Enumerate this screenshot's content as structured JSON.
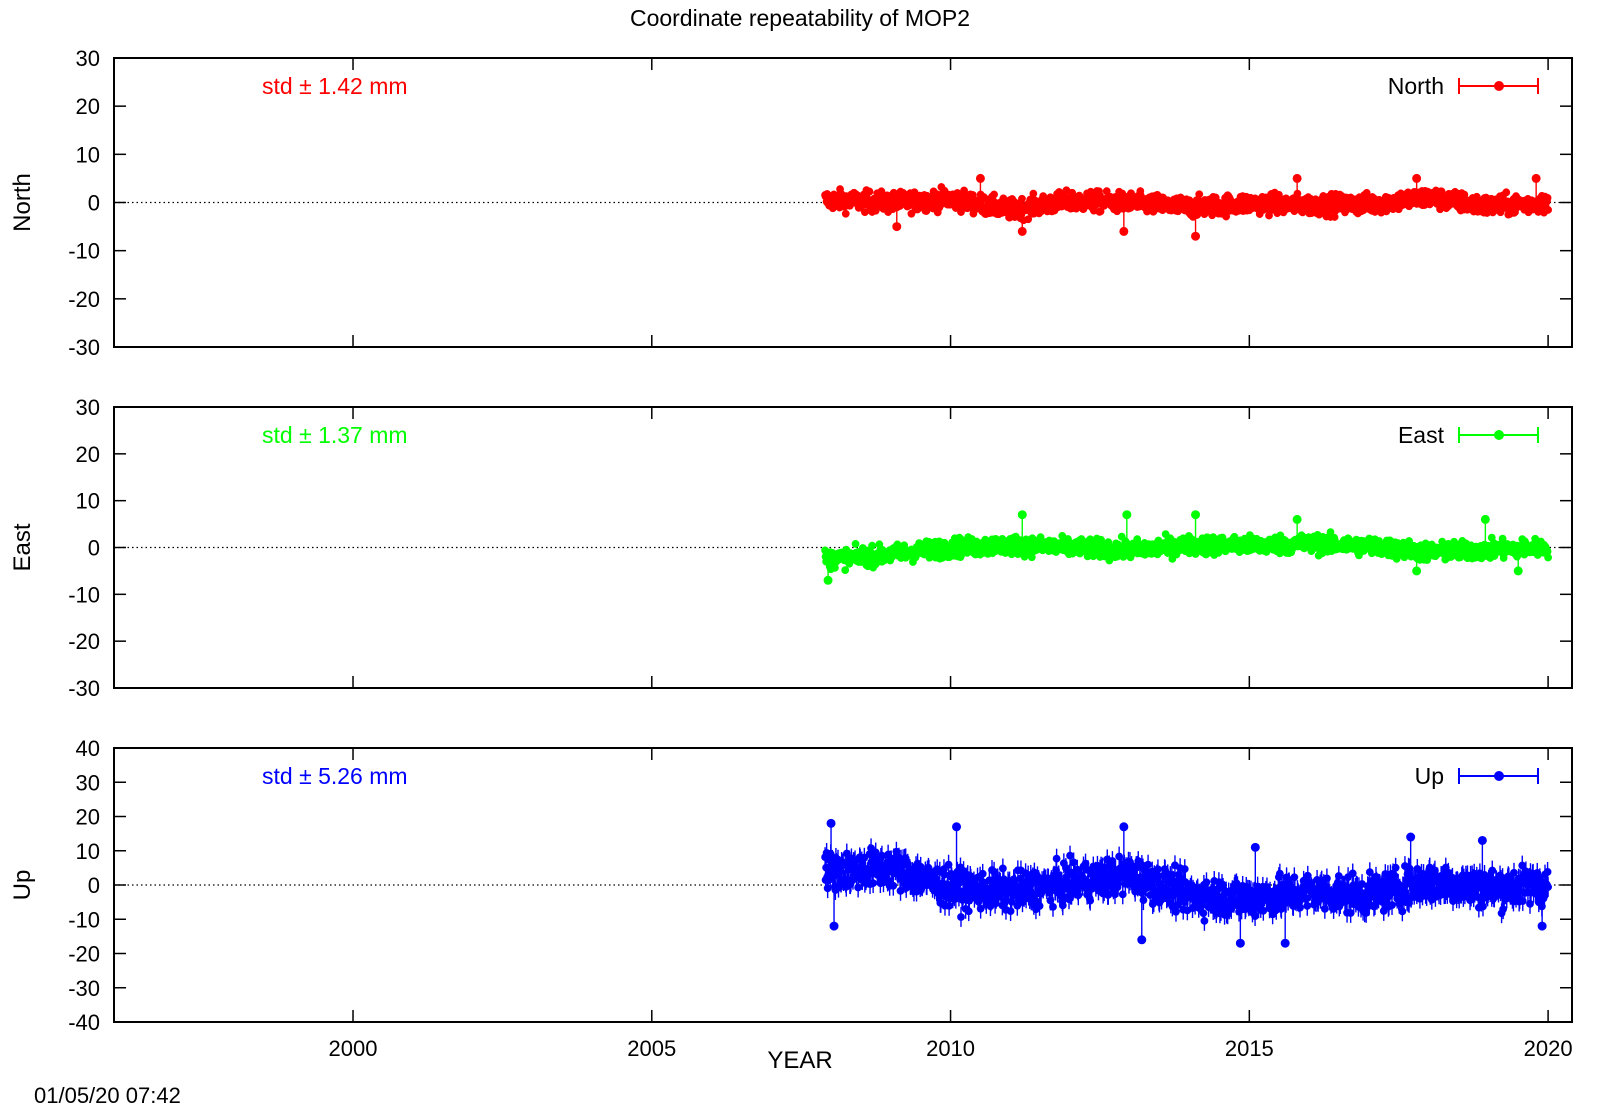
{
  "chart_data": {
    "type": "scatter",
    "title": "Coordinate repeatability of MOP2",
    "xlabel": "YEAR",
    "xlim": [
      1996,
      2020.4
    ],
    "x_ticks": [
      "2000",
      "2005",
      "2010",
      "2015",
      "2020"
    ],
    "x_start": 2007.9,
    "x_end": 2020.0,
    "timestamp": "01/05/20 07:42",
    "grid": false,
    "legend_position": "top-right",
    "reference_line": 0,
    "panels": [
      {
        "key": "north",
        "ylabel": "North",
        "legend": "North",
        "std_label": "std ± 1.42 mm",
        "color": "#ff0000",
        "ylim": [
          -30,
          30
        ],
        "y_ticks": [
          "30",
          "20",
          "10",
          "0",
          "-10",
          "-20",
          "-30"
        ],
        "std": 1.42,
        "trend_years": [
          2008,
          2009,
          2010,
          2011,
          2012,
          2013,
          2014,
          2015,
          2016,
          2017,
          2018,
          2019,
          2020
        ],
        "trend_values": [
          0.5,
          0.0,
          0.8,
          -1.5,
          0.3,
          0.0,
          -1.0,
          -0.2,
          -0.5,
          -0.3,
          1.0,
          -0.8,
          0.0
        ],
        "spread": 1.9,
        "outliers": [
          [
            2009.1,
            -5
          ],
          [
            2010.5,
            5
          ],
          [
            2011.2,
            -6
          ],
          [
            2012.9,
            -6
          ],
          [
            2014.1,
            -7
          ],
          [
            2015.8,
            5
          ],
          [
            2017.8,
            5
          ],
          [
            2019.8,
            5
          ]
        ]
      },
      {
        "key": "east",
        "ylabel": "East",
        "legend": "East",
        "std_label": "std ± 1.37 mm",
        "color": "#00ff00",
        "ylim": [
          -30,
          30
        ],
        "y_ticks": [
          "30",
          "20",
          "10",
          "0",
          "-10",
          "-20",
          "-30"
        ],
        "std": 1.37,
        "trend_years": [
          2008,
          2009,
          2010,
          2011,
          2012,
          2013,
          2014,
          2015,
          2016,
          2017,
          2018,
          2019,
          2020
        ],
        "trend_values": [
          -2.5,
          -1.5,
          0.0,
          0.5,
          0.0,
          -0.5,
          0.5,
          0.5,
          0.8,
          0.3,
          -1.0,
          -0.5,
          0.0
        ],
        "spread": 1.8,
        "outliers": [
          [
            2007.95,
            -7
          ],
          [
            2011.2,
            7
          ],
          [
            2012.95,
            7
          ],
          [
            2014.1,
            7
          ],
          [
            2015.8,
            6
          ],
          [
            2017.8,
            -5
          ],
          [
            2018.95,
            6
          ],
          [
            2019.5,
            -5
          ]
        ]
      },
      {
        "key": "up",
        "ylabel": "Up",
        "legend": "Up",
        "std_label": "std ± 5.26 mm",
        "color": "#0000ff",
        "ylim": [
          -40,
          40
        ],
        "y_ticks": [
          "40",
          "30",
          "20",
          "10",
          "0",
          "-10",
          "-20",
          "-30",
          "-40"
        ],
        "std": 5.26,
        "trend_years": [
          2008,
          2009,
          2010,
          2011,
          2012,
          2013,
          2014,
          2015,
          2016,
          2017,
          2018,
          2019,
          2020
        ],
        "trend_values": [
          4.0,
          5.0,
          -1.0,
          -2.0,
          0.5,
          3.0,
          -3.0,
          -4.0,
          -2.0,
          -3.0,
          1.0,
          -1.0,
          0.0
        ],
        "spread": 5.0,
        "outliers": [
          [
            2008.0,
            18
          ],
          [
            2008.05,
            -12
          ],
          [
            2010.1,
            17
          ],
          [
            2012.9,
            17
          ],
          [
            2013.2,
            -16
          ],
          [
            2014.85,
            -17
          ],
          [
            2015.1,
            11
          ],
          [
            2015.6,
            -17
          ],
          [
            2017.7,
            14
          ],
          [
            2018.9,
            13
          ],
          [
            2019.9,
            -12
          ]
        ]
      }
    ]
  }
}
